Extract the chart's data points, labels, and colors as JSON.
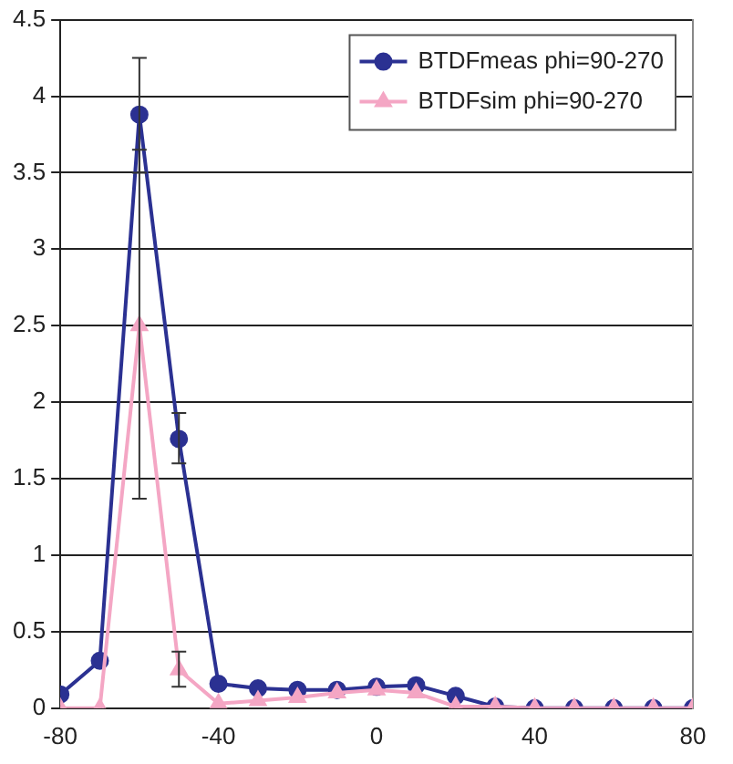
{
  "chart_data": {
    "type": "line",
    "x": [
      -80,
      -70,
      -60,
      -50,
      -40,
      -30,
      -20,
      -10,
      0,
      10,
      20,
      30,
      40,
      50,
      60,
      70,
      80
    ],
    "xlim": [
      -80,
      80
    ],
    "xticks": [
      -80,
      -40,
      0,
      40,
      80
    ],
    "ylim": [
      0,
      4.5
    ],
    "yticks": [
      0,
      0.5,
      1,
      1.5,
      2,
      2.5,
      3,
      3.5,
      4,
      4.5
    ],
    "grid": "y",
    "legend": "top right",
    "line_style": "solid",
    "series": [
      {
        "name": "BTDFmeas phi=90-270",
        "color": "#2b3192",
        "marker": "circle",
        "values": [
          0.09,
          0.31,
          3.88,
          1.76,
          0.16,
          0.13,
          0.12,
          0.12,
          0.14,
          0.15,
          0.08,
          0.01,
          0,
          0,
          0,
          0,
          0
        ],
        "errors": [
          null,
          null,
          [
            3.5,
            4.25
          ],
          [
            1.6,
            1.93
          ],
          null,
          null,
          null,
          null,
          null,
          null,
          null,
          null,
          null,
          null,
          null,
          null,
          null
        ]
      },
      {
        "name": "BTDFsim phi=90-270",
        "color": "#f4a6c4",
        "marker": "triangle",
        "values": [
          0,
          0,
          2.5,
          0.25,
          0.03,
          0.05,
          0.07,
          0.1,
          0.12,
          0.1,
          0.01,
          0.01,
          0,
          0,
          0,
          0,
          0
        ],
        "errors": [
          null,
          null,
          [
            1.37,
            3.65
          ],
          [
            0.14,
            0.37
          ],
          null,
          null,
          null,
          null,
          null,
          null,
          null,
          null,
          null,
          null,
          null,
          null,
          null
        ]
      }
    ]
  }
}
